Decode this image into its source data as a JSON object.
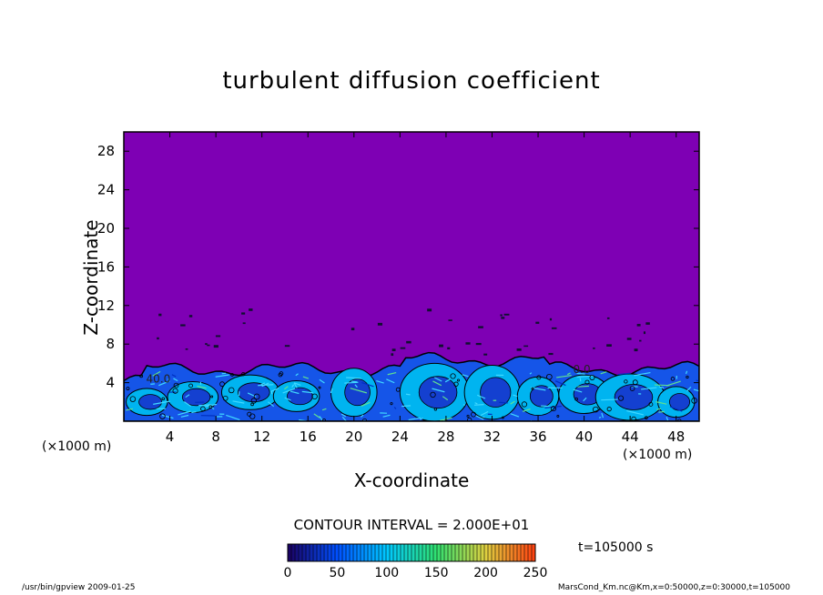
{
  "chart_data": {
    "type": "heatmap",
    "title": "turbulent diffusion coefficient",
    "xlabel": "X-coordinate",
    "ylabel": "Z-coordinate",
    "x_unit_left": "(×1000 m)",
    "x_unit_right": "(×1000 m)",
    "xlim": [
      0,
      50
    ],
    "ylim": [
      0,
      30
    ],
    "x_ticks": [
      4,
      8,
      12,
      16,
      20,
      24,
      28,
      32,
      36,
      40,
      44,
      48
    ],
    "y_ticks": [
      4,
      8,
      12,
      16,
      20,
      24,
      28
    ],
    "contour_interval": "CONTOUR INTERVAL = 2.000E+01",
    "contour_labels": [
      {
        "text": "40.0",
        "x": 3.0,
        "z": 4.0
      },
      {
        "text": "0.0",
        "x": 39.8,
        "z": 5.0
      }
    ],
    "colorbar": {
      "min": 0,
      "max": 250,
      "ticks": [
        0,
        50,
        100,
        150,
        200,
        250
      ],
      "colors": [
        "#1a0060",
        "#0050ff",
        "#00c8ff",
        "#30e070",
        "#e0d040",
        "#ff4010"
      ]
    },
    "time": "t=105000 s",
    "background_color": "#7e00b4",
    "boundary_layer_top_km": 6
  },
  "footer": {
    "left": "/usr/bin/gpview   2009-01-25",
    "right": "MarsCond_Km.nc@Km,x=0:50000,z=0:30000,t=105000"
  }
}
